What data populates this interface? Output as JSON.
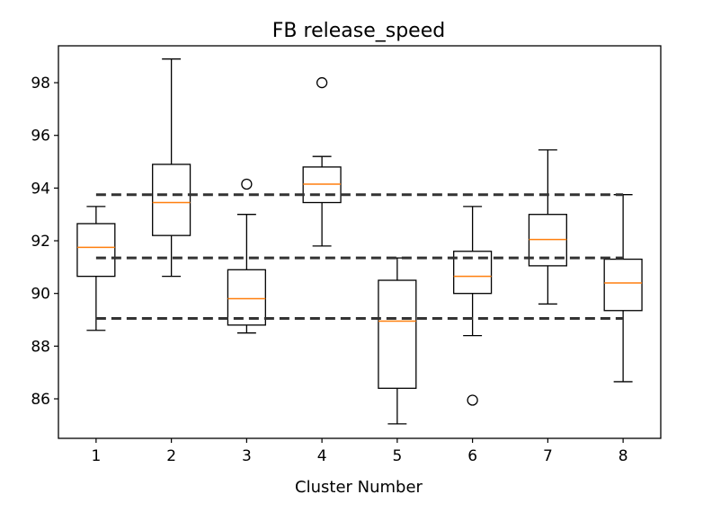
{
  "chart_data": {
    "type": "boxplot",
    "title": "FB release_speed",
    "xlabel": "Cluster Number",
    "ylabel": "",
    "categories": [
      "1",
      "2",
      "3",
      "4",
      "5",
      "6",
      "7",
      "8"
    ],
    "ylim": [
      84.5,
      99.4
    ],
    "yticks": [
      86,
      88,
      90,
      92,
      94,
      96,
      98
    ],
    "ytick_labels": [
      "86",
      "88",
      "90",
      "92",
      "94",
      "96",
      "98"
    ],
    "grid": false,
    "boxes": [
      {
        "category": "1",
        "whisker_low": 88.6,
        "q1": 90.65,
        "median": 91.75,
        "q3": 92.65,
        "whisker_high": 93.3,
        "outliers": []
      },
      {
        "category": "2",
        "whisker_low": 90.65,
        "q1": 92.2,
        "median": 93.45,
        "q3": 94.9,
        "whisker_high": 98.9,
        "outliers": []
      },
      {
        "category": "3",
        "whisker_low": 88.5,
        "q1": 88.8,
        "median": 89.8,
        "q3": 90.9,
        "whisker_high": 93.0,
        "outliers": [
          94.15
        ]
      },
      {
        "category": "4",
        "whisker_low": 91.8,
        "q1": 93.45,
        "median": 94.15,
        "q3": 94.8,
        "whisker_high": 95.2,
        "outliers": [
          98.0
        ]
      },
      {
        "category": "5",
        "whisker_low": 85.05,
        "q1": 86.4,
        "median": 88.95,
        "q3": 90.5,
        "whisker_high": 91.35,
        "outliers": []
      },
      {
        "category": "6",
        "whisker_low": 88.4,
        "q1": 90.0,
        "median": 90.65,
        "q3": 91.6,
        "whisker_high": 93.3,
        "outliers": [
          85.95
        ]
      },
      {
        "category": "7",
        "whisker_low": 89.6,
        "q1": 91.05,
        "median": 92.05,
        "q3": 93.0,
        "whisker_high": 95.45,
        "outliers": []
      },
      {
        "category": "8",
        "whisker_low": 86.65,
        "q1": 89.35,
        "median": 90.4,
        "q3": 91.3,
        "whisker_high": 93.75,
        "outliers": []
      }
    ],
    "reference_lines": [
      93.75,
      91.35,
      89.05
    ],
    "colors": {
      "box": "#000000",
      "median": "#ff7f0e",
      "reference_line": "#333333"
    }
  }
}
